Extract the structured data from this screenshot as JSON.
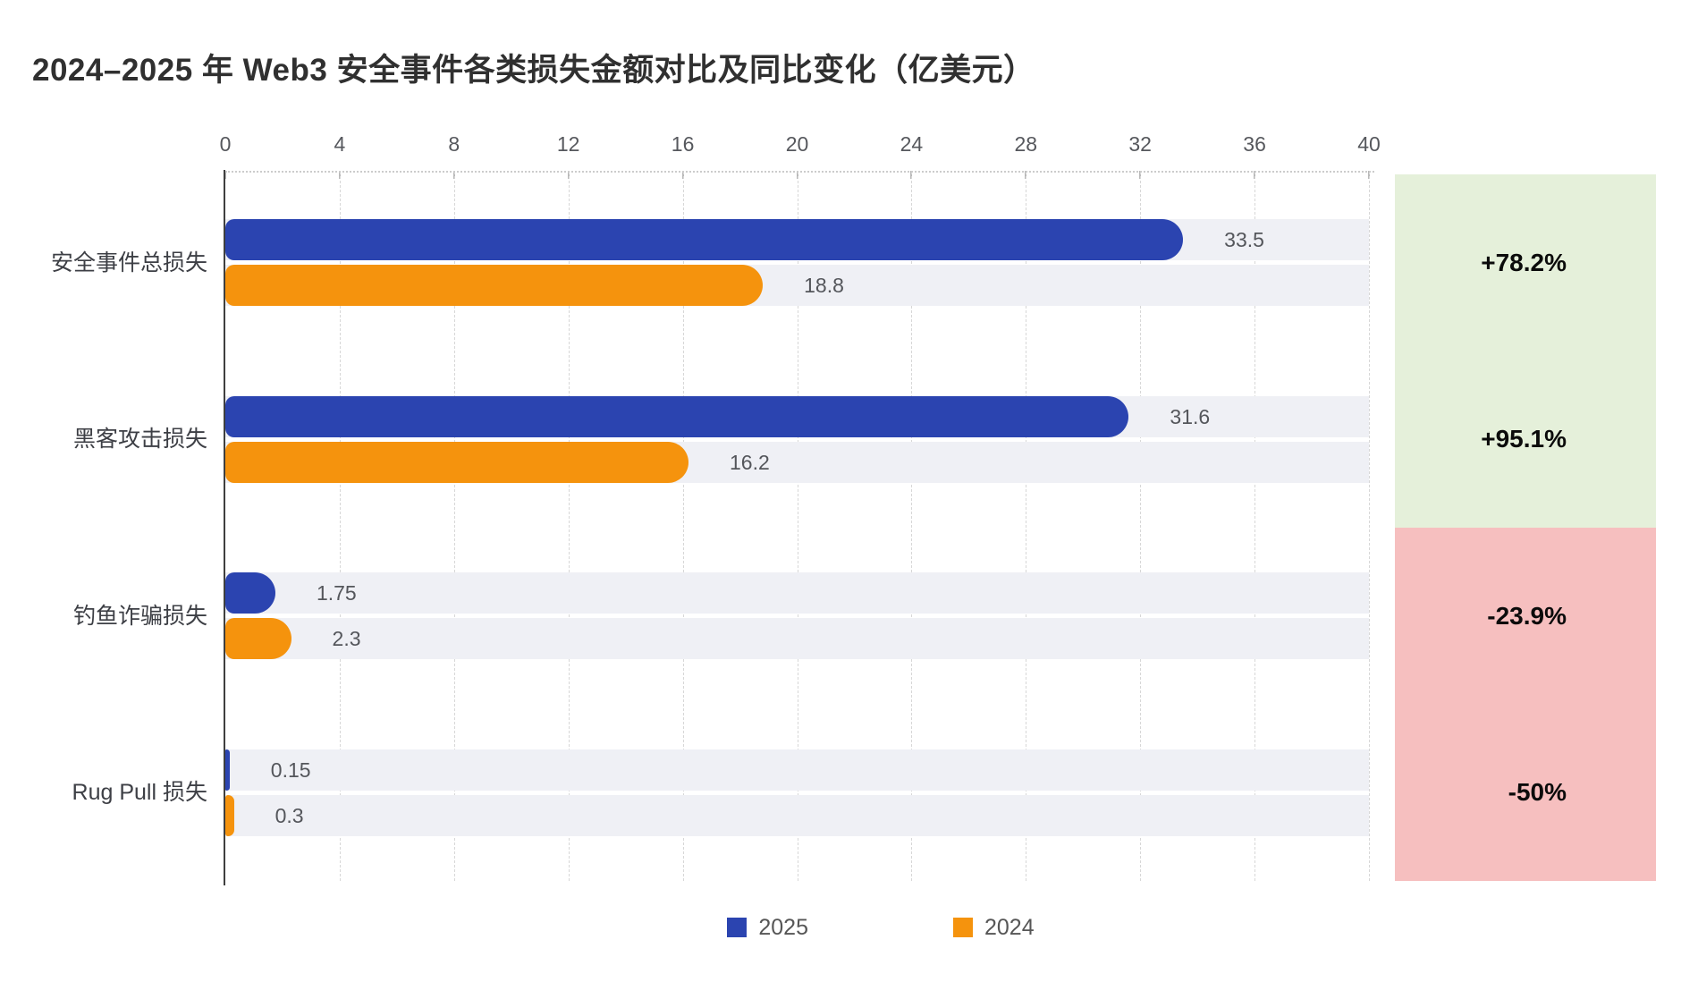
{
  "chart_data": {
    "type": "bar",
    "orientation": "horizontal",
    "title": "2024–2025 年 Web3 安全事件各类损失金额对比及同比变化（亿美元）",
    "categories": [
      "安全事件总损失",
      "黑客攻击损失",
      "钓鱼诈骗损失",
      "Rug Pull 损失"
    ],
    "series": [
      {
        "name": "2025",
        "values": [
          33.5,
          31.6,
          1.75,
          0.15
        ],
        "labels": [
          "33.5",
          "31.6",
          "1.75",
          "0.15"
        ]
      },
      {
        "name": "2024",
        "values": [
          18.8,
          16.2,
          2.3,
          0.3
        ],
        "labels": [
          "18.8",
          "16.2",
          "2.3",
          "0.3"
        ]
      }
    ],
    "yoy_change": [
      "+78.2%",
      "+95.1%",
      "-23.9%",
      "-50%"
    ],
    "x_ticks": [
      0,
      4,
      8,
      12,
      16,
      20,
      24,
      28,
      32,
      36,
      40
    ],
    "xlim": [
      0,
      40
    ],
    "grid": "dashed-vertical",
    "legend_position": "bottom"
  },
  "colors": {
    "series_2025": "#2b44b0",
    "series_2024": "#f5930d",
    "bar_track": "#eff0f5",
    "positive_bg": "#e5f0da",
    "negative_bg": "#f6bfbf",
    "pct_text": "#0b0b0b"
  }
}
